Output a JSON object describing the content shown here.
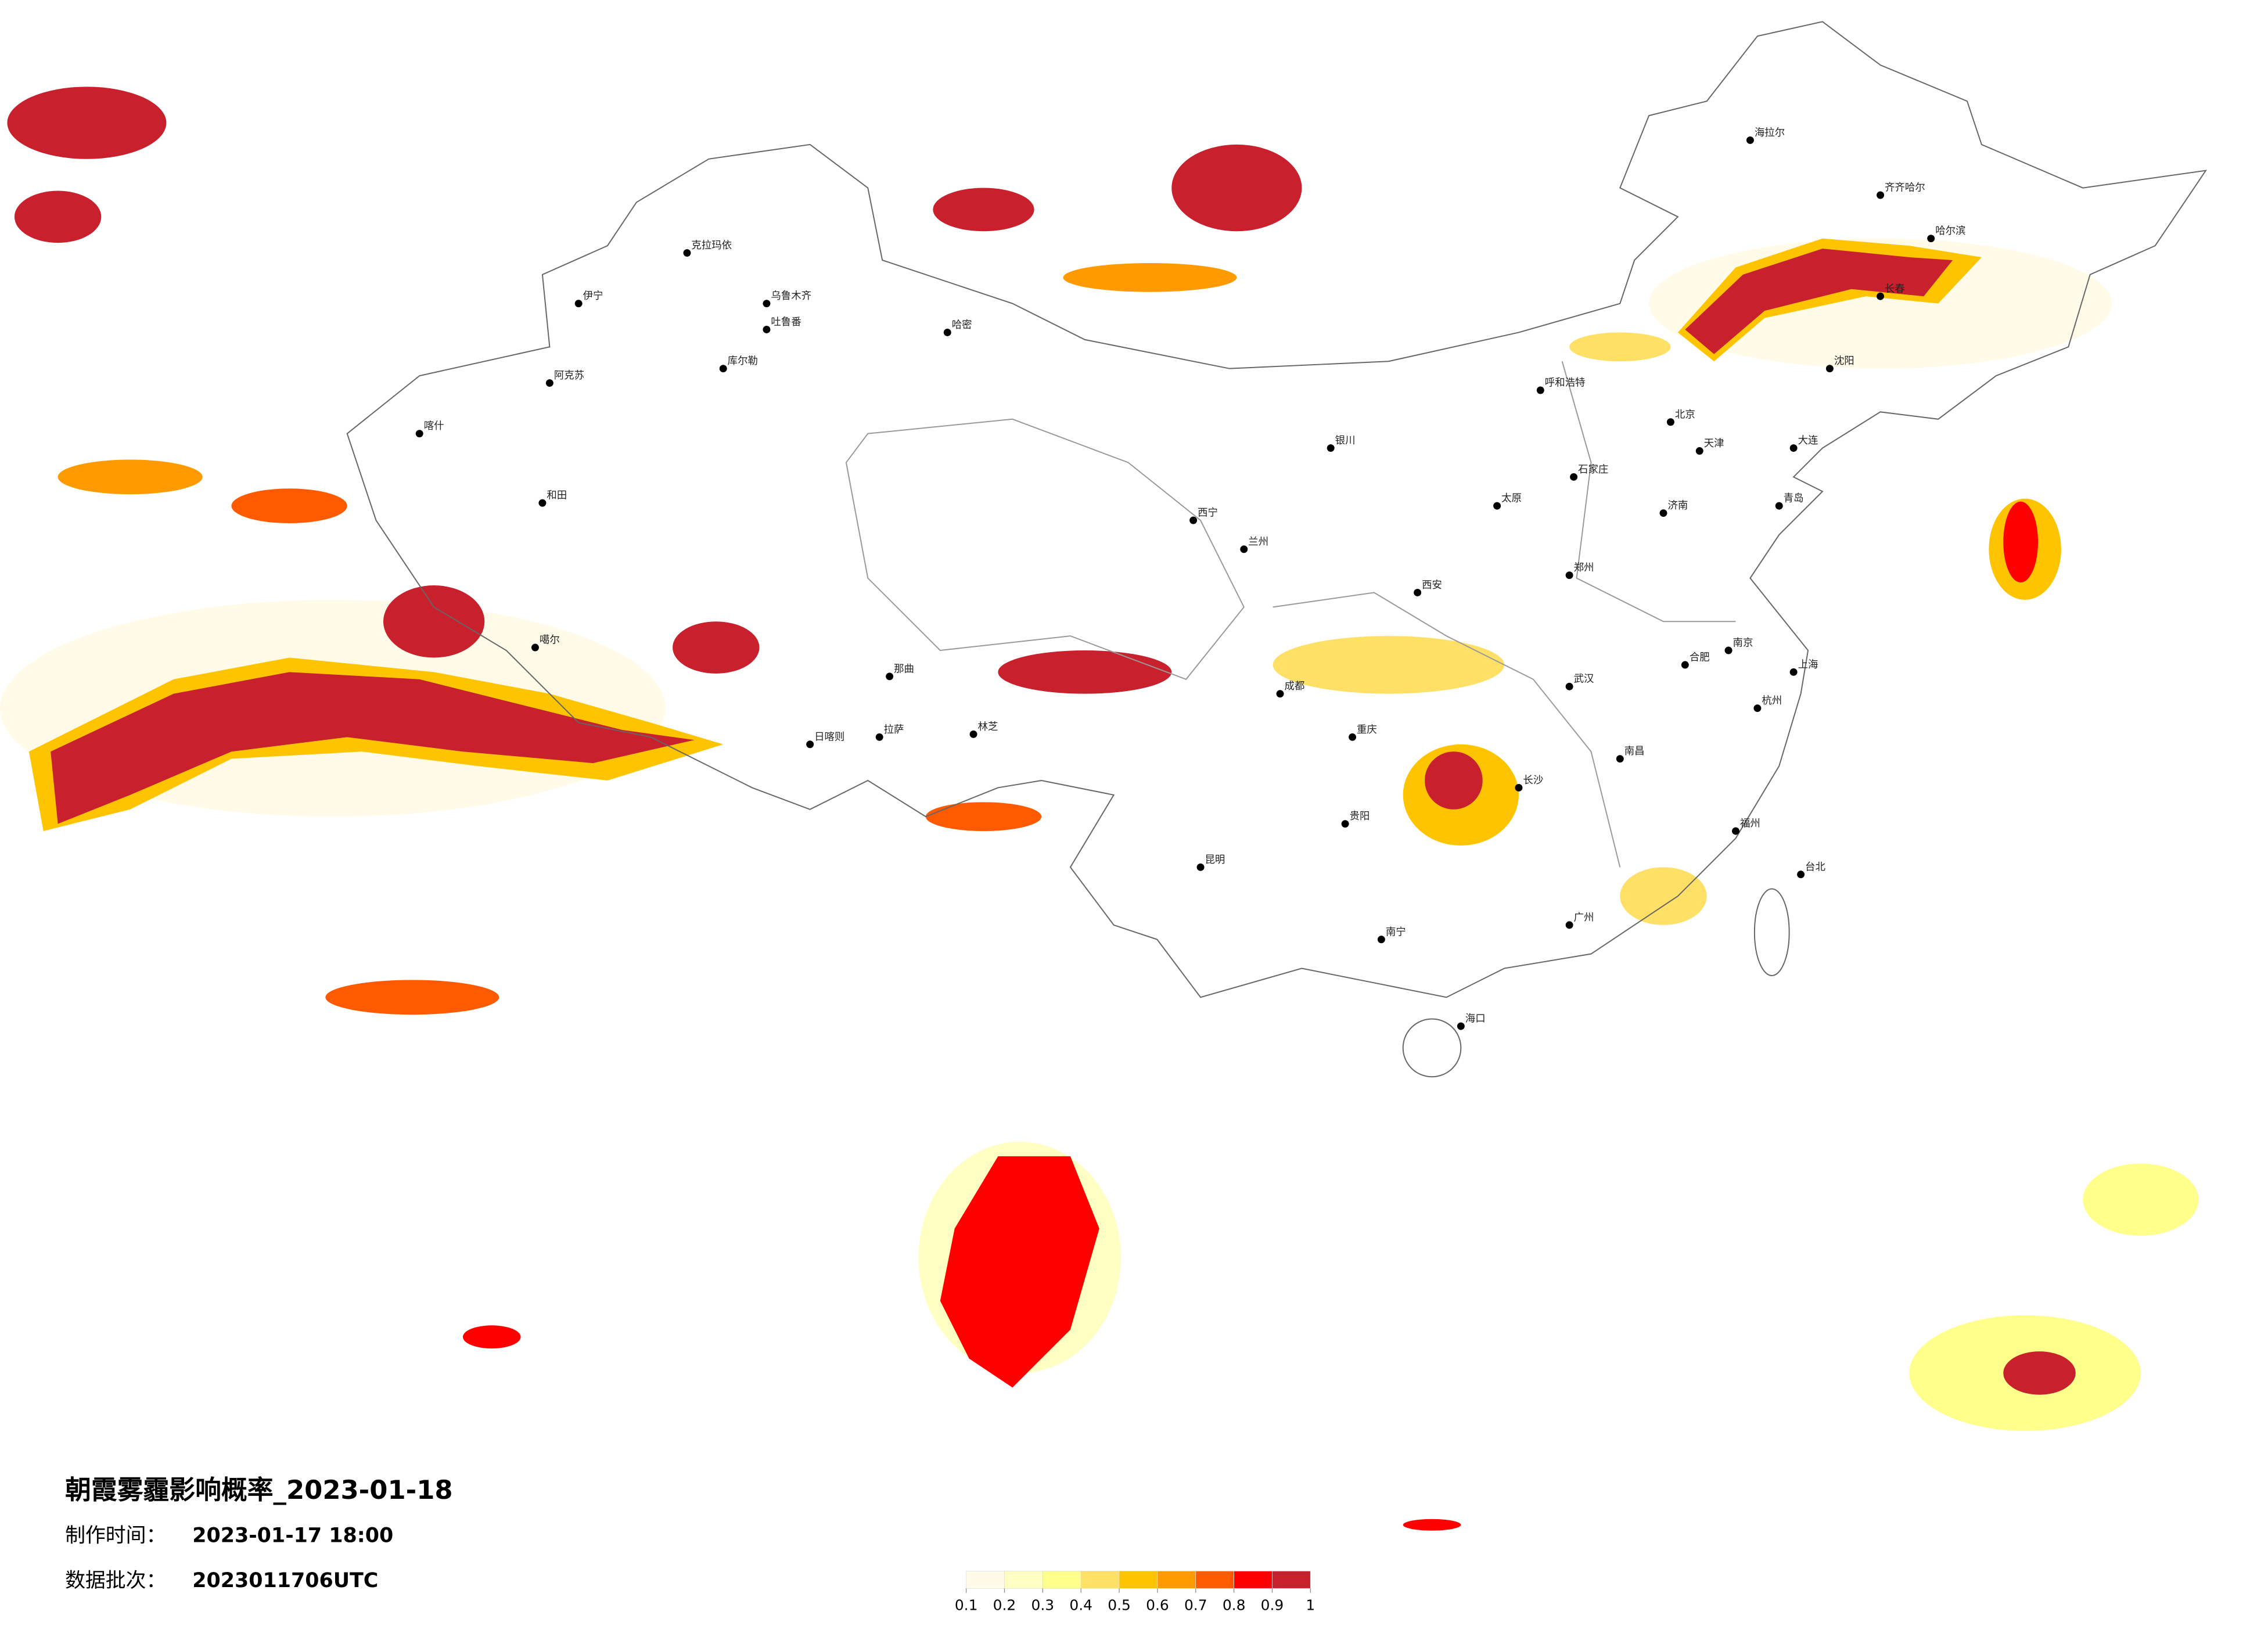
{
  "title": "朝霞雾霾影响概率_2023-01-18",
  "made_label": "制作时间：",
  "made_time": "2023-01-17 18:00",
  "batch_label": "数据批次：",
  "batch": "2023011706UTC",
  "legend": {
    "ticks": [
      0.1,
      0.2,
      0.3,
      0.4,
      0.5,
      0.6,
      0.7,
      0.8,
      0.9,
      1
    ],
    "colors": [
      "#fffbe8",
      "#ffffc4",
      "#ffff8c",
      "#ffe066",
      "#ffc400",
      "#ff9a00",
      "#ff5a00",
      "#ff0000",
      "#c8202c"
    ]
  },
  "cities": [
    "克拉玛依",
    "乌鲁木齐",
    "伊宁",
    "阿克苏",
    "喀什",
    "和田",
    "哈密",
    "吐鲁番",
    "库尔勒",
    "噶尔",
    "日喀则",
    "拉萨",
    "林芝",
    "那曲",
    "西宁",
    "兰州",
    "银川",
    "呼和浩特",
    "太原",
    "石家庄",
    "北京",
    "天津",
    "济南",
    "郑州",
    "西安",
    "成都",
    "重庆",
    "贵阳",
    "昆明",
    "南宁",
    "广州",
    "长沙",
    "武汉",
    "南昌",
    "合肥",
    "南京",
    "上海",
    "杭州",
    "福州",
    "台北",
    "海口",
    "沈阳",
    "长春",
    "哈尔滨",
    "齐齐哈尔",
    "海拉尔",
    "大连",
    "青岛"
  ]
}
